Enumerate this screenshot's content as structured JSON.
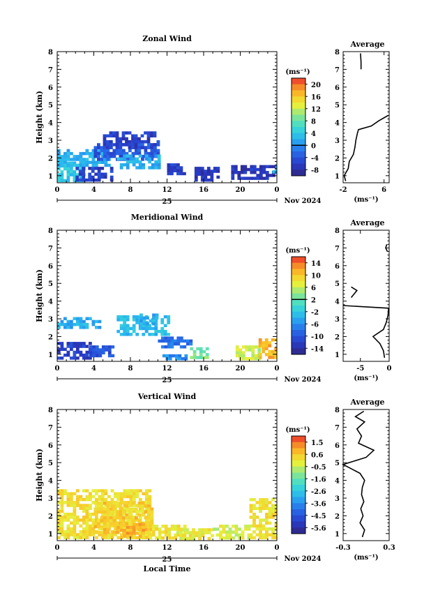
{
  "date_label": "Nov 2024",
  "day_label": "25",
  "x_axis_title": "Local Time",
  "y_axis_title": "Height (km)",
  "unit_label": "(ms⁻¹)",
  "average_title": "Average",
  "chart_data": [
    {
      "type": "heatmap",
      "title": "Zonal Wind",
      "ylabel": "Height (km)",
      "x_ticks": [
        "0",
        "4",
        "8",
        "12",
        "16",
        "20",
        "0"
      ],
      "y_ticks": [
        "1",
        "2",
        "3",
        "4",
        "5",
        "6",
        "7",
        "8"
      ],
      "xlim": [
        0,
        24
      ],
      "ylim": [
        0.6,
        8
      ],
      "colorbar": {
        "ticks": [
          "20",
          "16",
          "12",
          "8",
          "4",
          "0",
          "-4",
          "-8"
        ],
        "range": [
          -10,
          22
        ],
        "zero_line": 0
      },
      "regions": [
        {
          "x": [
            0.0,
            3.0
          ],
          "y": [
            0.8,
            1.8
          ],
          "value": 4
        },
        {
          "x": [
            0.0,
            5.5
          ],
          "y": [
            1.6,
            2.5
          ],
          "value": 2
        },
        {
          "x": [
            2.0,
            6.0
          ],
          "y": [
            0.8,
            1.5
          ],
          "value": -6
        },
        {
          "x": [
            4.0,
            11.0
          ],
          "y": [
            2.0,
            3.0
          ],
          "value": -4
        },
        {
          "x": [
            5.0,
            10.5
          ],
          "y": [
            2.6,
            3.5
          ],
          "value": -6
        },
        {
          "x": [
            6.5,
            11.0
          ],
          "y": [
            1.4,
            2.2
          ],
          "value": 2
        },
        {
          "x": [
            12.0,
            14.0
          ],
          "y": [
            1.2,
            1.7
          ],
          "value": -6
        },
        {
          "x": [
            15.0,
            17.5
          ],
          "y": [
            0.8,
            1.5
          ],
          "value": -7
        },
        {
          "x": [
            19.0,
            24.0
          ],
          "y": [
            0.8,
            1.6
          ],
          "value": -7
        },
        {
          "x": [
            23.5,
            24.0
          ],
          "y": [
            1.2,
            1.8
          ],
          "value": 2
        }
      ],
      "average": {
        "xlabel": "(ms⁻¹)",
        "x_ticks": [
          "-2",
          "6"
        ],
        "xlim": [
          -2,
          7
        ],
        "ylim": [
          0.6,
          8
        ],
        "profile": [
          {
            "h": 0.7,
            "v": -1.5
          },
          {
            "h": 1.0,
            "v": -1.8
          },
          {
            "h": 1.4,
            "v": -1.0
          },
          {
            "h": 1.8,
            "v": -0.8
          },
          {
            "h": 2.2,
            "v": 0.0
          },
          {
            "h": 2.6,
            "v": 0.3
          },
          {
            "h": 3.0,
            "v": 0.5
          },
          {
            "h": 3.4,
            "v": 0.8
          },
          {
            "h": 3.6,
            "v": 1.0
          },
          {
            "h": 3.8,
            "v": 3.5
          },
          {
            "h": 4.1,
            "v": 5.0
          },
          {
            "h": 4.4,
            "v": 6.8
          }
        ],
        "profile_upper": [
          {
            "h": 7.0,
            "v": 1.5
          },
          {
            "h": 7.4,
            "v": 1.5
          },
          {
            "h": 7.9,
            "v": 1.4
          }
        ]
      }
    },
    {
      "type": "heatmap",
      "title": "Meridional Wind",
      "ylabel": "Height (km)",
      "x_ticks": [
        "0",
        "4",
        "8",
        "12",
        "16",
        "20",
        "0"
      ],
      "y_ticks": [
        "1",
        "2",
        "3",
        "4",
        "5",
        "6",
        "7",
        "8"
      ],
      "xlim": [
        0,
        24
      ],
      "ylim": [
        0.6,
        8
      ],
      "colorbar": {
        "ticks": [
          "14",
          "10",
          "6",
          "2",
          "-2",
          "-6",
          "-10",
          "-14"
        ],
        "range": [
          -16,
          16
        ],
        "zero_line": 0
      },
      "regions": [
        {
          "x": [
            0.0,
            4.5
          ],
          "y": [
            2.6,
            3.1
          ],
          "value": -4
        },
        {
          "x": [
            0.0,
            3.5
          ],
          "y": [
            0.8,
            1.7
          ],
          "value": -12
        },
        {
          "x": [
            3.5,
            6.0
          ],
          "y": [
            1.0,
            1.5
          ],
          "value": -10
        },
        {
          "x": [
            6.5,
            12.0
          ],
          "y": [
            2.2,
            3.2
          ],
          "value": -3
        },
        {
          "x": [
            9.0,
            11.0
          ],
          "y": [
            2.8,
            3.3
          ],
          "value": -4
        },
        {
          "x": [
            11.0,
            14.5
          ],
          "y": [
            1.4,
            2.0
          ],
          "value": -8
        },
        {
          "x": [
            11.5,
            14.0
          ],
          "y": [
            0.7,
            1.0
          ],
          "value": -6
        },
        {
          "x": [
            14.5,
            16.5
          ],
          "y": [
            0.8,
            1.4
          ],
          "value": 3
        },
        {
          "x": [
            19.5,
            22.0
          ],
          "y": [
            0.8,
            1.5
          ],
          "value": 6
        },
        {
          "x": [
            22.0,
            24.0
          ],
          "y": [
            0.8,
            1.9
          ],
          "value": 11
        }
      ],
      "average": {
        "xlabel": "(ms⁻¹)",
        "x_ticks": [
          "-5",
          "0"
        ],
        "xlim": [
          -8,
          0
        ],
        "ylim": [
          0.6,
          8
        ],
        "profile": [
          {
            "h": 0.8,
            "v": -0.8
          },
          {
            "h": 1.2,
            "v": -1.0
          },
          {
            "h": 1.6,
            "v": -1.6
          },
          {
            "h": 2.0,
            "v": -2.8
          },
          {
            "h": 2.4,
            "v": -1.0
          },
          {
            "h": 2.8,
            "v": -0.5
          },
          {
            "h": 3.2,
            "v": -0.2
          },
          {
            "h": 3.6,
            "v": -0.1
          },
          {
            "h": 3.75,
            "v": -8.0
          }
        ],
        "profile_upper": [
          {
            "h": 4.2,
            "v": -6.6
          },
          {
            "h": 4.6,
            "v": -5.6
          },
          {
            "h": 4.8,
            "v": -6.6
          }
        ],
        "profile_top": [
          {
            "h": 6.8,
            "v": -0.3
          },
          {
            "h": 7.0,
            "v": -0.6
          },
          {
            "h": 7.2,
            "v": -0.4
          }
        ]
      }
    },
    {
      "type": "heatmap",
      "title": "Vertical Wind",
      "ylabel": "Height (km)",
      "x_ticks": [
        "0",
        "4",
        "8",
        "12",
        "16",
        "20",
        "0"
      ],
      "y_ticks": [
        "1",
        "2",
        "3",
        "4",
        "5",
        "6",
        "7",
        "8"
      ],
      "xlim": [
        0,
        24
      ],
      "ylim": [
        0.6,
        8
      ],
      "colorbar": {
        "ticks": [
          "1.5",
          "0.6",
          "-0.5",
          "-1.6",
          "-2.6",
          "-3.6",
          "-4.5",
          "-5.6"
        ],
        "range": [
          -6,
          2.2
        ],
        "zero_line": null
      },
      "regions": [
        {
          "x": [
            0.0,
            10.0
          ],
          "y": [
            0.8,
            3.5
          ],
          "value": 0.3
        },
        {
          "x": [
            4.0,
            10.5
          ],
          "y": [
            1.0,
            2.8
          ],
          "value": 0.6
        },
        {
          "x": [
            6.5,
            9.5
          ],
          "y": [
            0.8,
            1.6
          ],
          "value": 1.0
        },
        {
          "x": [
            10.0,
            14.0
          ],
          "y": [
            0.8,
            1.5
          ],
          "value": 0.2
        },
        {
          "x": [
            13.0,
            17.0
          ],
          "y": [
            0.8,
            1.3
          ],
          "value": 0.0
        },
        {
          "x": [
            17.0,
            21.0
          ],
          "y": [
            0.8,
            1.5
          ],
          "value": -0.2
        },
        {
          "x": [
            21.0,
            24.0
          ],
          "y": [
            0.8,
            3.0
          ],
          "value": 0.2
        }
      ],
      "average": {
        "xlabel": "(ms⁻¹)",
        "x_ticks": [
          "-0.3",
          "0.3"
        ],
        "xlim": [
          -0.3,
          0.3
        ],
        "ylim": [
          0.6,
          8
        ],
        "profile": [
          {
            "h": 0.8,
            "v": -0.05
          },
          {
            "h": 1.2,
            "v": -0.02
          },
          {
            "h": 1.6,
            "v": -0.08
          },
          {
            "h": 2.0,
            "v": -0.04
          },
          {
            "h": 2.4,
            "v": -0.07
          },
          {
            "h": 2.8,
            "v": -0.03
          },
          {
            "h": 3.2,
            "v": -0.06
          },
          {
            "h": 3.6,
            "v": -0.05
          },
          {
            "h": 4.0,
            "v": -0.02
          },
          {
            "h": 4.4,
            "v": -0.08
          },
          {
            "h": 4.9,
            "v": -0.3
          },
          {
            "h": 5.3,
            "v": 0.0
          },
          {
            "h": 5.7,
            "v": 0.1
          },
          {
            "h": 6.1,
            "v": -0.1
          },
          {
            "h": 6.5,
            "v": -0.06
          },
          {
            "h": 6.9,
            "v": -0.12
          },
          {
            "h": 7.3,
            "v": -0.02
          },
          {
            "h": 7.6,
            "v": -0.14
          },
          {
            "h": 7.9,
            "v": -0.03
          }
        ]
      }
    }
  ]
}
